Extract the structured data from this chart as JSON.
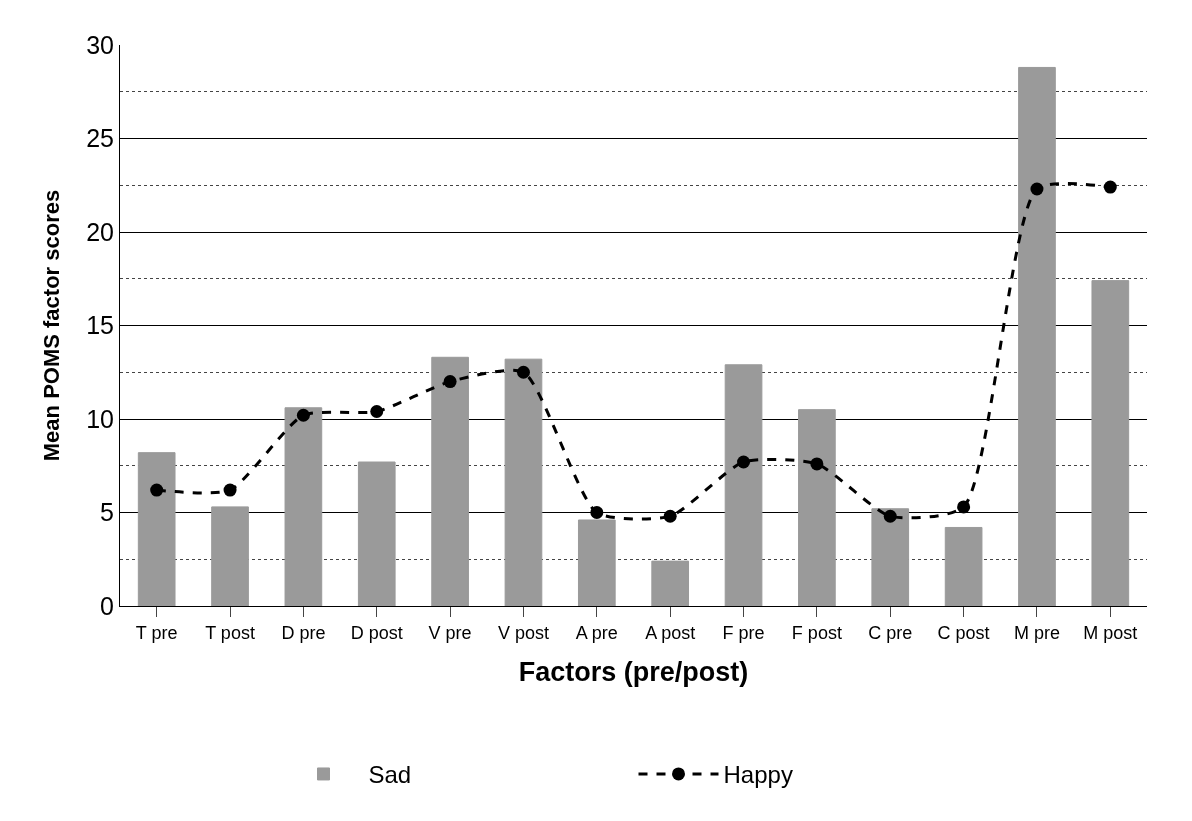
{
  "chart_data": {
    "type": "bar",
    "xlabel": "Factors (pre/post)",
    "ylabel": "Mean POMS factor scores",
    "categories": [
      "T pre",
      "T post",
      "D pre",
      "D post",
      "V pre",
      "V post",
      "A pre",
      "A post",
      "F pre",
      "F post",
      "C pre",
      "C post",
      "M pre",
      "M post"
    ],
    "series": [
      {
        "name": "Sad",
        "color": "#9a9a9a",
        "values": [
          8.2,
          5.3,
          10.6,
          7.7,
          13.3,
          13.2,
          4.6,
          2.4,
          12.9,
          10.5,
          5.2,
          4.2,
          28.8,
          17.4
        ]
      },
      {
        "name": "Happy",
        "type": "line",
        "color": "#000000",
        "marker": "circle",
        "line_style": "dashed",
        "values": [
          6.2,
          6.2,
          10.2,
          10.4,
          12.0,
          12.5,
          5.0,
          4.8,
          7.7,
          7.6,
          4.8,
          5.3,
          22.3,
          22.4
        ]
      }
    ],
    "ylim": [
      0,
      30
    ],
    "yticks": [
      0,
      5,
      10,
      15,
      20,
      25,
      30
    ],
    "grid": "y",
    "legend": "bottom"
  }
}
